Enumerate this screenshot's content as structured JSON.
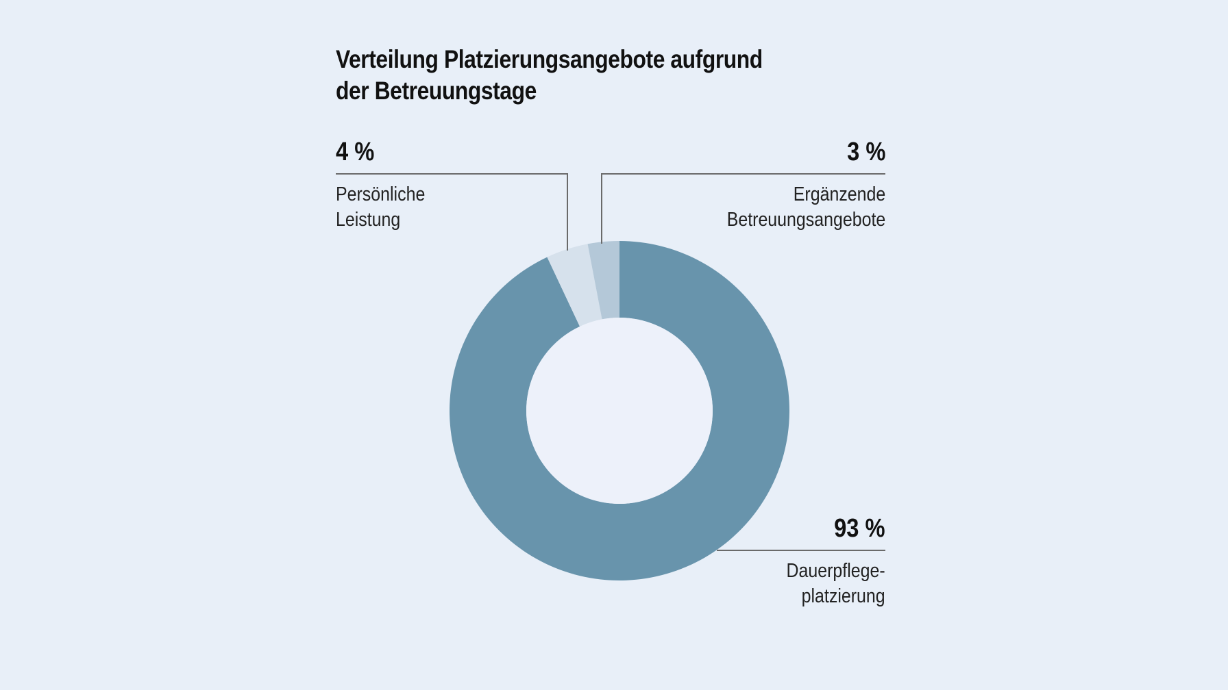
{
  "title": {
    "line1": "Verteilung Platzierungsangebote aufgrund",
    "line2": "der Betreuungstage"
  },
  "labels": {
    "persoenlich": {
      "pct": "4 %",
      "line1": "Persönliche",
      "line2": "Leistung"
    },
    "ergaenzend": {
      "pct": "3 %",
      "line1": "Ergänzende",
      "line2": "Betreuungsangebote"
    },
    "dauerpflege": {
      "pct": "93 %",
      "line1": "Dauerpflege-",
      "line2": "platzierung"
    }
  },
  "colors": {
    "background": "#e8eff8",
    "hole": "#edf1fa",
    "dauerpflege": "#6894ac",
    "persoenlich": "#d6e1ec",
    "ergaenzend": "#b4c8d8",
    "leader": "#6a6a6a"
  },
  "chart_data": {
    "type": "pie",
    "subtype": "donut",
    "title": "Verteilung Platzierungsangebote aufgrund der Betreuungstage",
    "categories": [
      "Dauerpflegeplatzierung",
      "Persönliche Leistung",
      "Ergänzende Betreuungsangebote"
    ],
    "values": [
      93,
      4,
      3
    ],
    "unit": "%",
    "colors": [
      "#6894ac",
      "#d6e1ec",
      "#b4c8d8"
    ],
    "start_angle": "12 o'clock",
    "direction": "clockwise",
    "legend": "callout labels with leader lines"
  }
}
